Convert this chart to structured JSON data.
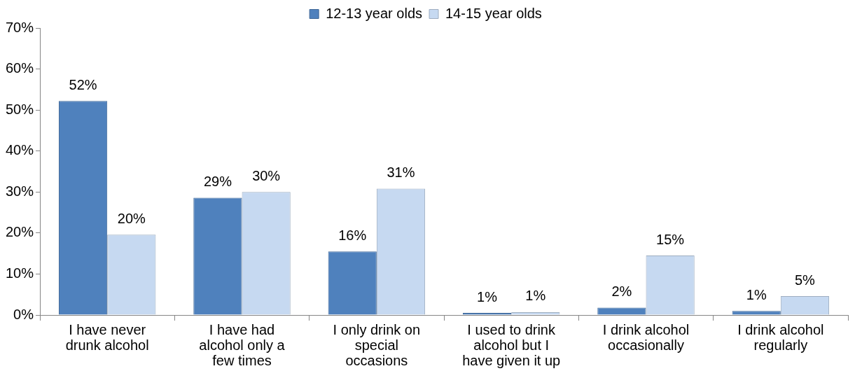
{
  "chart_data": {
    "type": "bar",
    "categories": [
      "I have never drunk alcohol",
      "I have had alcohol only a few times",
      "I only drink on special occasions",
      "I used to drink alcohol but I have given it up",
      "I drink alcohol occasionally",
      "I drink alcohol regularly"
    ],
    "series": [
      {
        "name": "12-13 year olds",
        "color": "#4f81bd",
        "values": [
          52.2,
          28.6,
          15.5,
          0.5,
          1.8,
          1.0
        ],
        "value_labels": [
          "52%",
          "29%",
          "16%",
          "1%",
          "2%",
          "1%"
        ]
      },
      {
        "name": "14-15 year olds",
        "color": "#c6d9f1",
        "values": [
          19.6,
          30.0,
          30.8,
          0.7,
          14.5,
          4.6
        ],
        "value_labels": [
          "20%",
          "30%",
          "31%",
          "1%",
          "15%",
          "5%"
        ]
      }
    ],
    "ylim": [
      0,
      70
    ],
    "yticks": [
      {
        "value": 0,
        "label": "0%"
      },
      {
        "value": 10,
        "label": "10%"
      },
      {
        "value": 20,
        "label": "20%"
      },
      {
        "value": 30,
        "label": "30%"
      },
      {
        "value": 40,
        "label": "40%"
      },
      {
        "value": 50,
        "label": "50%"
      },
      {
        "value": 60,
        "label": "60%"
      },
      {
        "value": 70,
        "label": "70%"
      }
    ],
    "grid": false,
    "legend": "top"
  }
}
